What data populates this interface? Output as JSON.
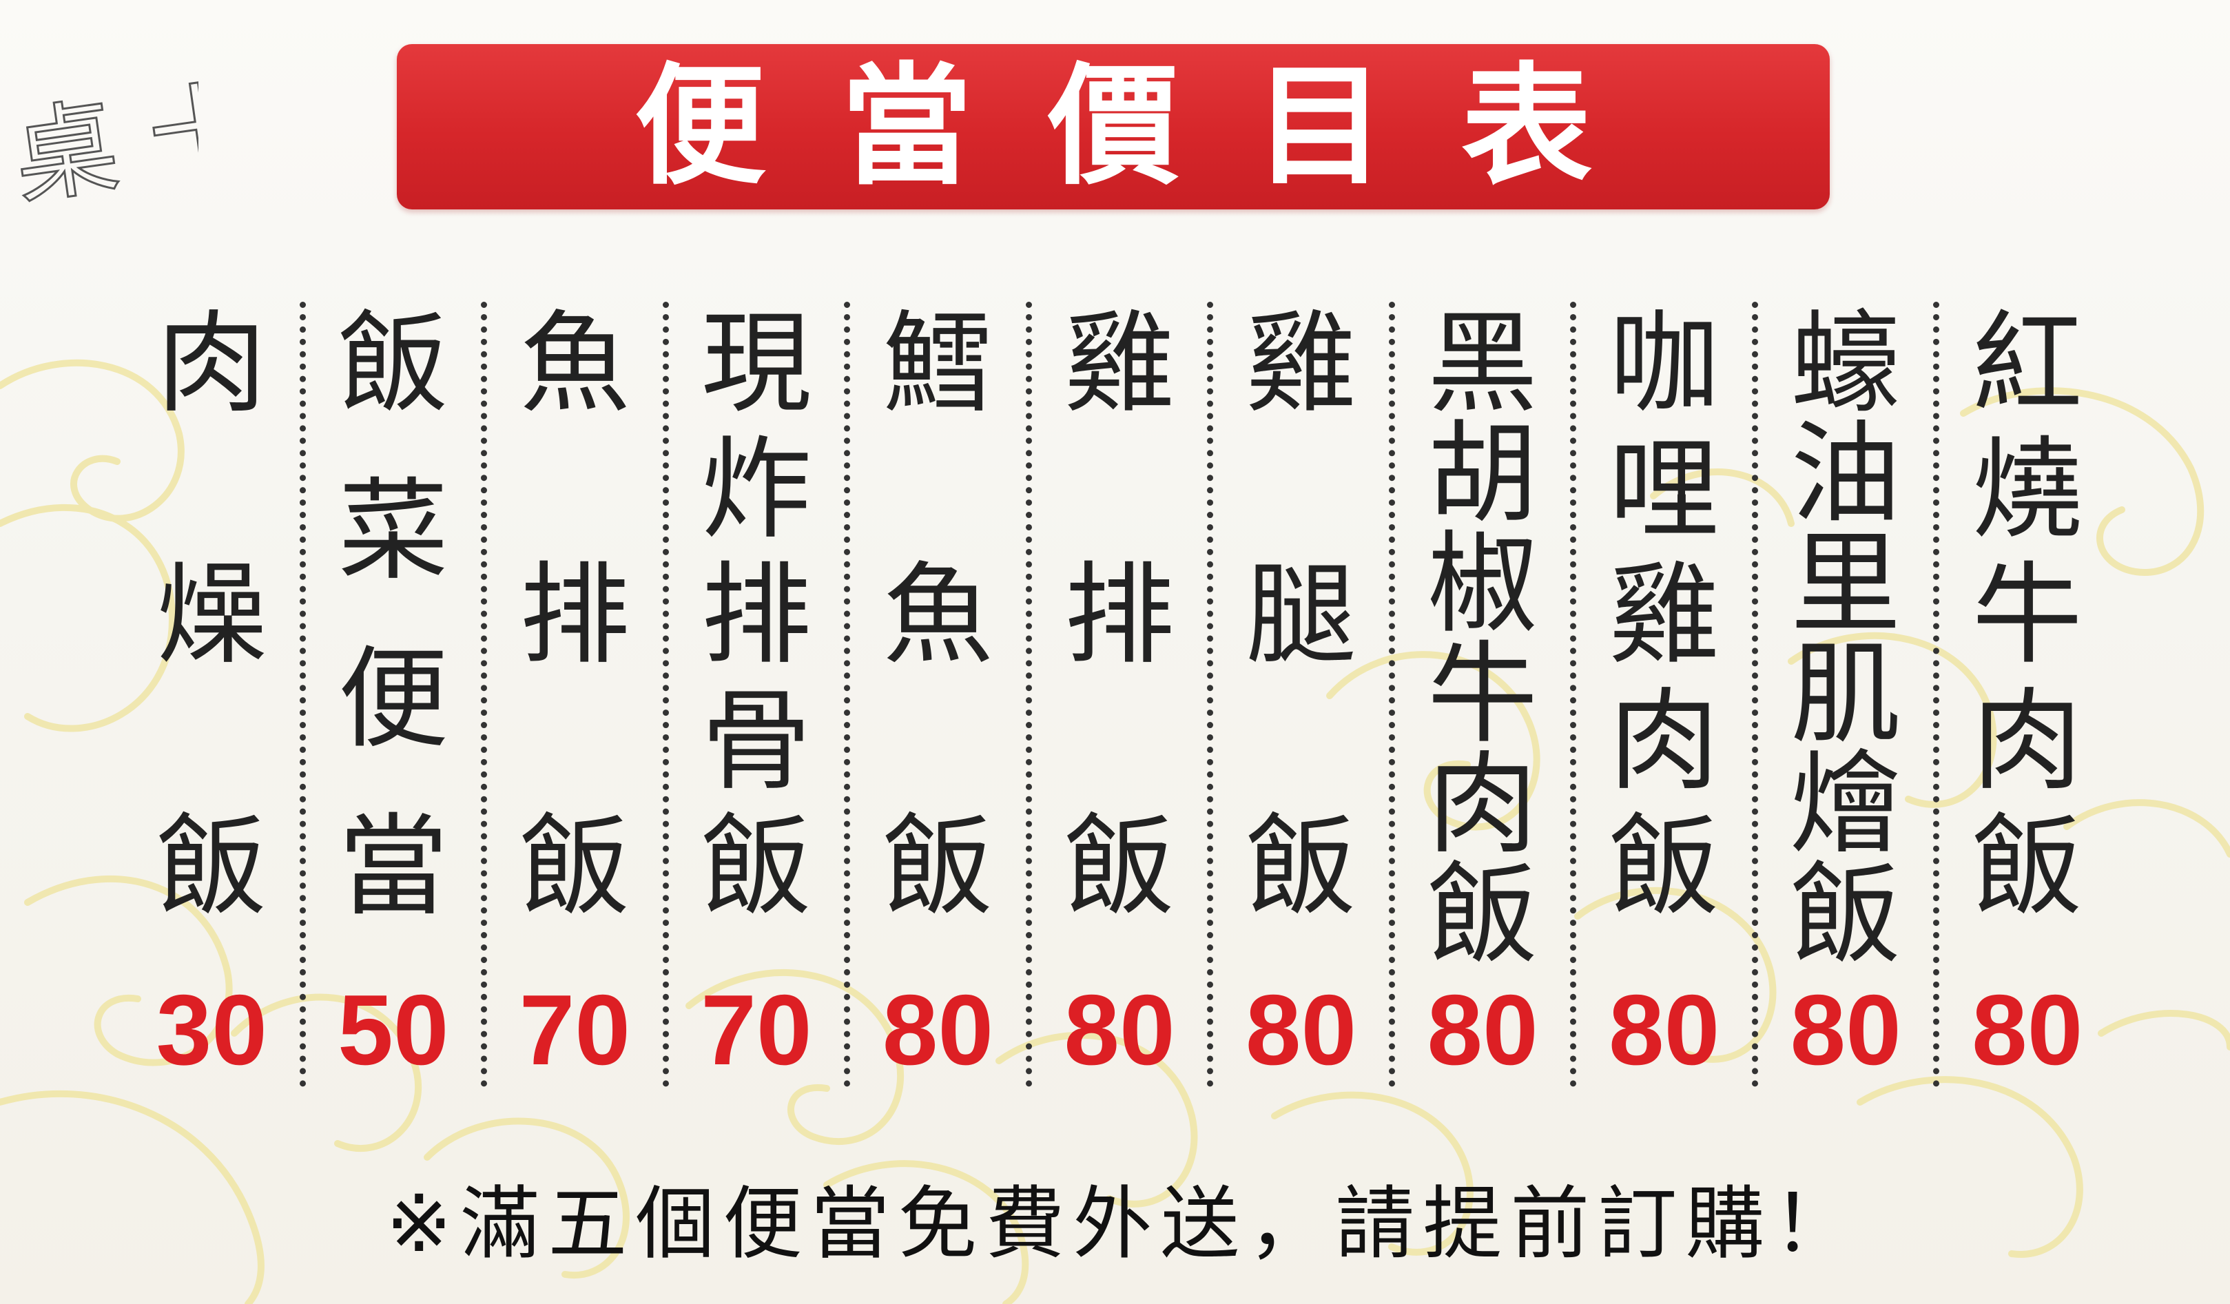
{
  "handwritten_note": "桌 十一",
  "title": "便當價目表",
  "menu": [
    {
      "name": "肉燥飯",
      "price": "30"
    },
    {
      "name": "飯菜便當",
      "price": "50"
    },
    {
      "name": "魚排飯",
      "price": "70"
    },
    {
      "name": "現炸排骨飯",
      "price": "70"
    },
    {
      "name": "鱈魚飯",
      "price": "80"
    },
    {
      "name": "雞排飯",
      "price": "80"
    },
    {
      "name": "雞腿飯",
      "price": "80"
    },
    {
      "name": "黑胡椒牛肉飯",
      "price": "80"
    },
    {
      "name": "咖哩雞肉飯",
      "price": "80"
    },
    {
      "name": "蠔油里肌燴飯",
      "price": "80"
    },
    {
      "name": "紅燒牛肉飯",
      "price": "80"
    }
  ],
  "footer_note": "※滿五個便當免費外送，請提前訂購！",
  "colors": {
    "banner": "#d6262a",
    "title_text": "#ffffff",
    "price": "#dd1f24",
    "item_text": "#222222",
    "divider": "#333333",
    "background": "#f6f5f0",
    "swirl": "#f0e6a8"
  }
}
